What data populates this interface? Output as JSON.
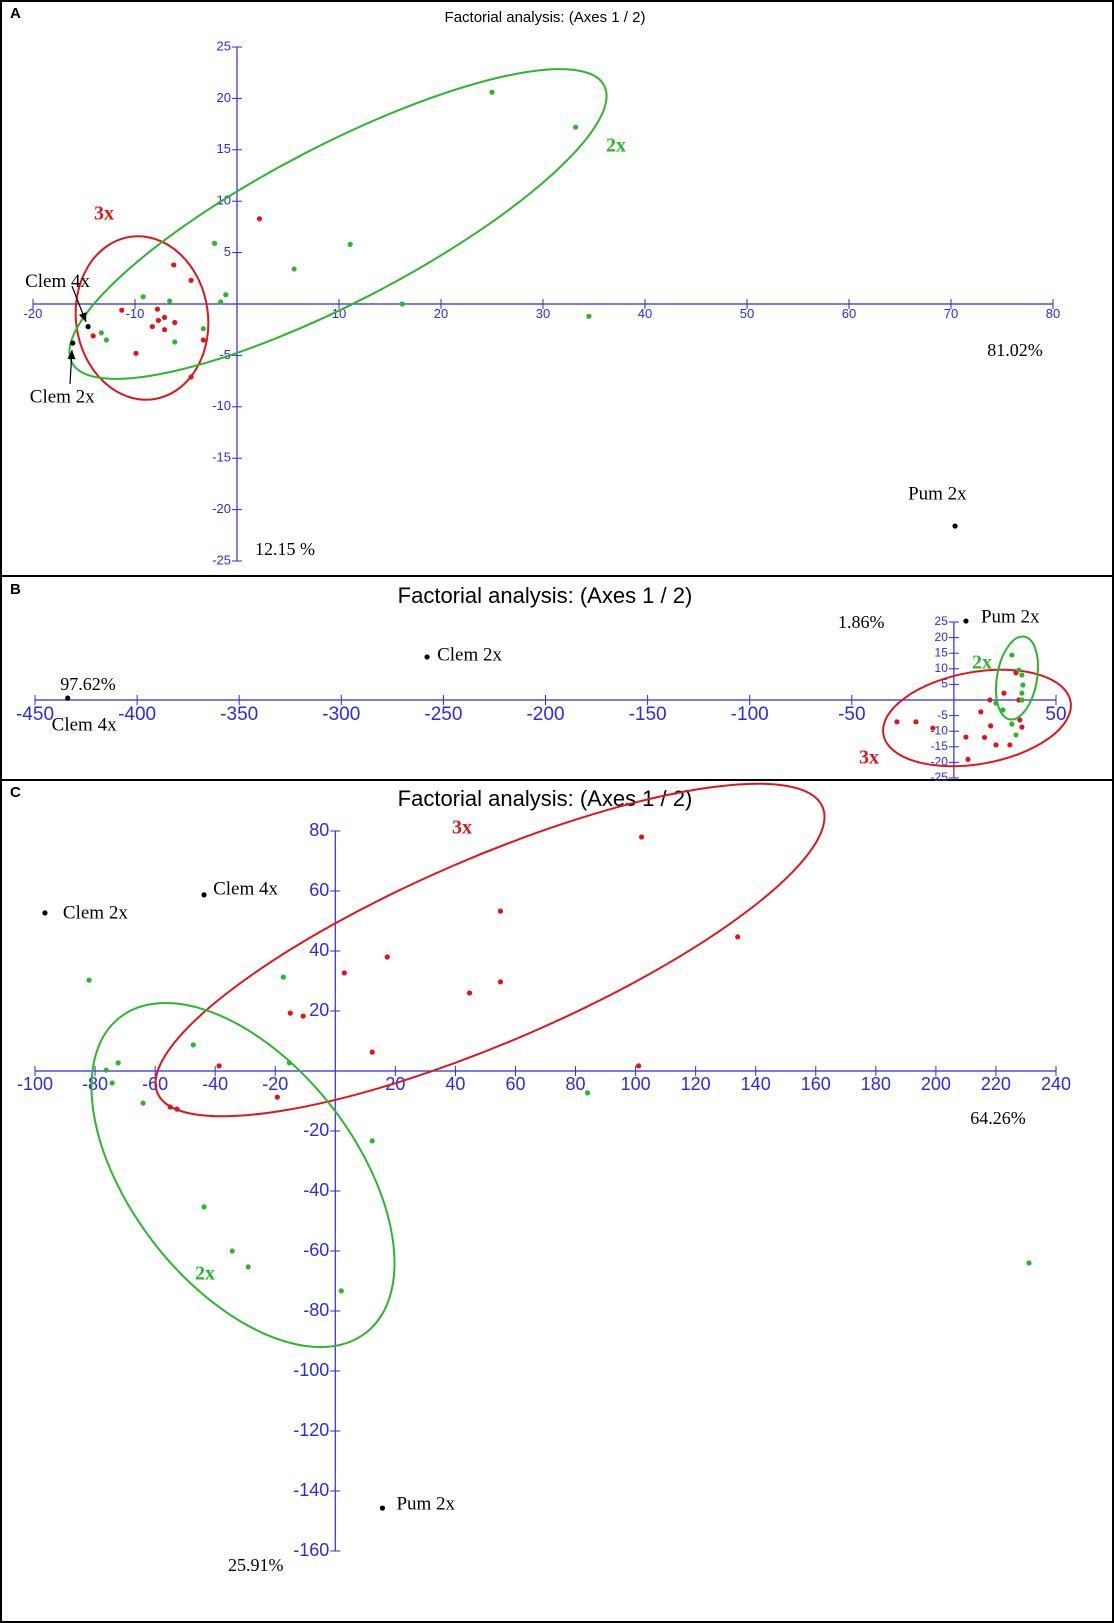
{
  "chart_data": [
    {
      "type": "scatter",
      "panel": "A",
      "title": "Factorial analysis: (Axes 1 / 2)",
      "x_label": "81.02%",
      "y_label": "12.15 %",
      "xlim": [
        -20,
        80
      ],
      "ylim": [
        -25,
        25
      ],
      "xticks": [
        -20,
        -10,
        10,
        20,
        30,
        40,
        50,
        60,
        70,
        80
      ],
      "yticks": [
        -25,
        -20,
        -15,
        -10,
        -5,
        5,
        10,
        15,
        20,
        25
      ],
      "series": [
        {
          "name": "3x",
          "color": "#e0151c",
          "x": [
            2.2,
            -6.2,
            -4.5,
            -11.3,
            -9.9,
            -7.8,
            -7.7,
            -7.1,
            -6.1,
            -7.1,
            -8.3,
            -3.3,
            -4.5,
            -14.1
          ],
          "y": [
            8.3,
            3.8,
            2.3,
            -0.6,
            -4.8,
            -0.5,
            -1.6,
            -1.3,
            -1.8,
            -2.5,
            -2.2,
            -3.5,
            -7.1,
            -3.1
          ]
        },
        {
          "name": "2x",
          "color": "#2db52d",
          "x": [
            25,
            33.2,
            11.1,
            5.6,
            -2.2,
            -1.1,
            -1.6,
            16.2,
            34.5,
            -9.2,
            -6.6,
            -3.3,
            -6.1,
            -12.8,
            -13.3
          ],
          "y": [
            20.6,
            17.2,
            5.8,
            3.4,
            5.9,
            0.9,
            0.2,
            0,
            -1.2,
            0.7,
            0.3,
            -2.4,
            -3.7,
            -3.5,
            -2.8
          ]
        }
      ],
      "labeled_points": [
        {
          "label": "Clem 4x",
          "x": -14.6,
          "y": -2.2
        },
        {
          "label": "Clem 2x",
          "x": -16.1,
          "y": -3.8
        },
        {
          "label": "Pum 2x",
          "x": 70.4,
          "y": -21.6
        }
      ]
    },
    {
      "type": "scatter",
      "panel": "B",
      "title": "Factorial analysis: (Axes 1 / 2)",
      "x_label": "97.62%",
      "y_label": "1.86%",
      "xlim": [
        -450,
        50
      ],
      "ylim": [
        -25,
        25
      ],
      "xticks": [
        -450,
        -400,
        -350,
        -300,
        -250,
        -200,
        -150,
        -100,
        -50,
        50
      ],
      "yticks": [
        -25,
        -20,
        -15,
        -10,
        -5,
        5,
        10,
        15,
        20,
        25
      ],
      "series": [
        {
          "name": "3x",
          "color": "#e0151c",
          "x": [
            -27.9,
            -18.6,
            -10.3,
            5.9,
            6.9,
            13.2,
            15,
            18,
            20.6,
            24.5,
            30.4,
            31.8,
            32.3,
            33.3,
            17.6,
            27.4
          ],
          "y": [
            -7,
            -7,
            -9,
            -11.9,
            -19,
            -3.8,
            -12,
            -8.3,
            -14.4,
            2.2,
            8.7,
            0,
            -6.4,
            -8.7,
            0,
            -14.4
          ]
        },
        {
          "name": "2x",
          "color": "#2db52d",
          "x": [
            28.4,
            31.8,
            33.3,
            33.8,
            33.3,
            33.3,
            20.6,
            24,
            28.4,
            30.4
          ],
          "y": [
            14.4,
            9.6,
            8,
            4.8,
            2.2,
            0,
            -1,
            -3.2,
            -7.7,
            -11.2
          ]
        }
      ],
      "labeled_points": [
        {
          "label": "Pum 2x",
          "x": 5.9,
          "y": 25.3
        },
        {
          "label": "Clem 2x",
          "x": -258,
          "y": 13.8
        },
        {
          "label": "Clem 4x",
          "x": -434,
          "y": 0.6
        }
      ]
    },
    {
      "type": "scatter",
      "panel": "C",
      "title": "Factorial analysis: (Axes 1 / 2)",
      "x_label": "64.26%",
      "y_label": "25.91%",
      "xlim": [
        -100,
        240
      ],
      "ylim": [
        -160,
        80
      ],
      "xticks": [
        -100,
        -80,
        -60,
        -40,
        -20,
        20,
        40,
        60,
        80,
        100,
        120,
        140,
        160,
        180,
        200,
        220,
        240
      ],
      "yticks": [
        -160,
        -140,
        -120,
        -100,
        -80,
        -60,
        -40,
        -20,
        20,
        40,
        60,
        80
      ],
      "series": [
        {
          "name": "3x",
          "color": "#e0151c",
          "x": [
            102,
            55,
            134,
            17.3,
            3,
            44.7,
            55,
            -15,
            -10.7,
            12.3,
            101,
            -38.7,
            -19.3,
            -55,
            -52.7
          ],
          "y": [
            78,
            53.3,
            44.7,
            38,
            32.7,
            26,
            29.7,
            19.3,
            18.3,
            6.3,
            1.7,
            1.7,
            -8.7,
            -12,
            -12.7
          ]
        },
        {
          "name": "2x",
          "color": "#2db52d",
          "x": [
            -82,
            -17.3,
            -47.3,
            -72.3,
            -76.3,
            -15.3,
            -74.3,
            -64,
            12.3,
            84,
            -43.7,
            -34.3,
            -29,
            2,
            231
          ],
          "y": [
            30.3,
            31.3,
            8.7,
            2.7,
            0.3,
            2.7,
            -4,
            -10.7,
            -23.3,
            -7.3,
            -45.3,
            -60,
            -65.3,
            -73.3,
            -64
          ]
        }
      ],
      "labeled_points": [
        {
          "label": "Clem 2x",
          "x": -96.7,
          "y": 52.7
        },
        {
          "label": "Clem 4x",
          "x": -43.7,
          "y": 58.7
        },
        {
          "label": "Pum 2x",
          "x": 15.7,
          "y": -145.7
        }
      ]
    }
  ]
}
